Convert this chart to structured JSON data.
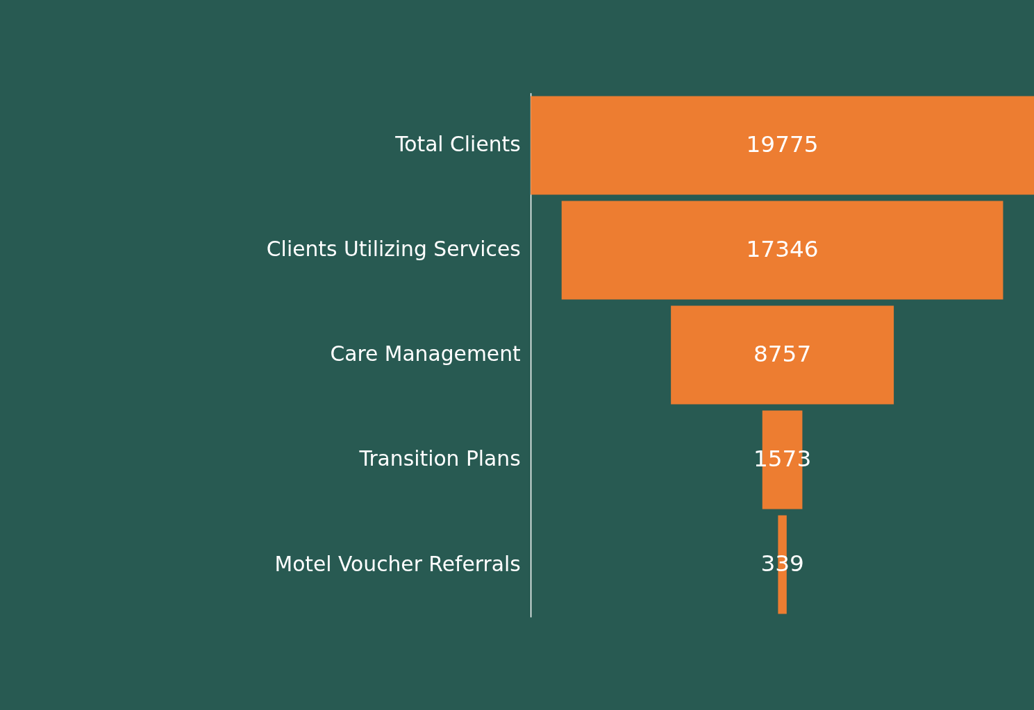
{
  "chart_data": {
    "type": "other",
    "categories": [
      "Total Clients",
      "Clients Utilizing Services",
      "Care Management",
      "Transition Plans",
      "Motel Voucher Referrals"
    ],
    "values": [
      19775,
      17346,
      8757,
      1573,
      339
    ],
    "color": "#ed7d31",
    "data_labels": true
  }
}
